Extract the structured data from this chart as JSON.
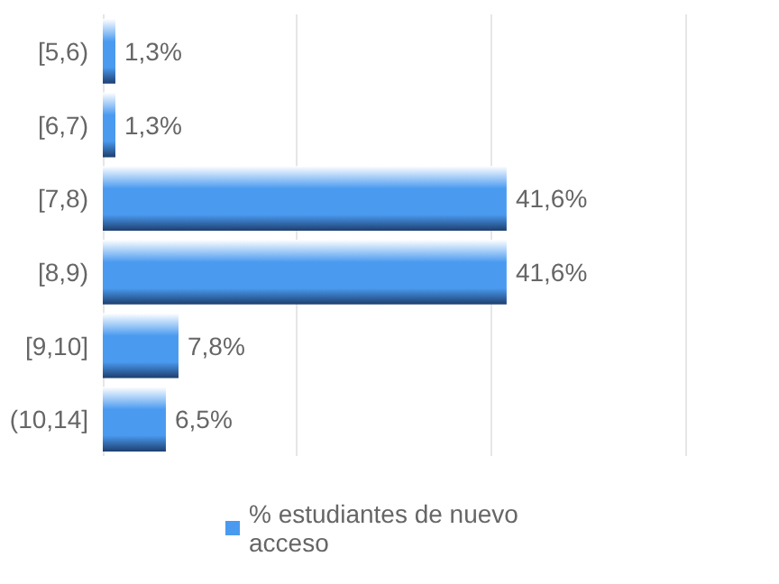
{
  "chart_data": {
    "type": "bar",
    "orientation": "horizontal",
    "categories": [
      "[5,6)",
      "[6,7)",
      "[7,8)",
      "[8,9)",
      "[9,10]",
      "(10,14]"
    ],
    "series": [
      {
        "name": "% estudiantes de nuevo acceso",
        "color": "#4a9af0",
        "values": [
          1.3,
          1.3,
          41.6,
          41.6,
          7.8,
          6.5
        ],
        "value_labels": [
          "1,3%",
          "1,3%",
          "41,6%",
          "41,6%",
          "7,8%",
          "6,5%"
        ]
      }
    ],
    "xlim": [
      0,
      60
    ],
    "xticks": [
      {
        "value": 0,
        "label": null
      },
      {
        "value": 20,
        "label": null
      },
      {
        "value": 40,
        "label": null
      },
      {
        "value": 60,
        "label": null
      }
    ],
    "tick_labels": "y",
    "grid": "x",
    "legend": "bottom"
  }
}
